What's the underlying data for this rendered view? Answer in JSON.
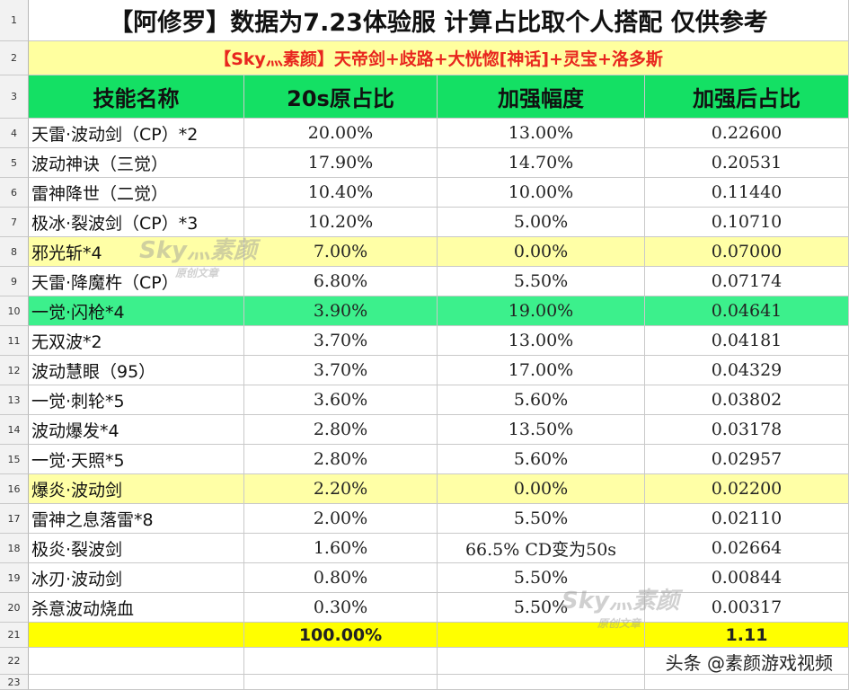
{
  "title": "【阿修罗】数据为7.23体验服 计算占比取个人搭配 仅供参考",
  "subtitle": "【Sky灬素颜】天帝剑+歧路+大恍惚[神话]+灵宝+洛多斯",
  "headers": [
    "技能名称",
    "20s原占比",
    "加强幅度",
    "加强后占比"
  ],
  "row_numbers": [
    "1",
    "2",
    "3",
    "4",
    "5",
    "6",
    "7",
    "8",
    "9",
    "10",
    "11",
    "12",
    "13",
    "14",
    "15",
    "16",
    "17",
    "18",
    "19",
    "20",
    "21",
    "22",
    "23"
  ],
  "rows": [
    {
      "name": "天雷·波动剑（CP）*2",
      "orig": "20.00%",
      "boost": "13.00%",
      "after": "0.22600",
      "hl": ""
    },
    {
      "name": "波动神诀（三觉）",
      "orig": "17.90%",
      "boost": "14.70%",
      "after": "0.20531",
      "hl": ""
    },
    {
      "name": "雷神降世（二觉）",
      "orig": "10.40%",
      "boost": "10.00%",
      "after": "0.11440",
      "hl": ""
    },
    {
      "name": "极冰·裂波剑（CP）*3",
      "orig": "10.20%",
      "boost": "5.00%",
      "after": "0.10710",
      "hl": ""
    },
    {
      "name": "邪光斩*4",
      "orig": "7.00%",
      "boost": "0.00%",
      "after": "0.07000",
      "hl": "yellow"
    },
    {
      "name": "天雷·降魔杵（CP）",
      "orig": "6.80%",
      "boost": "5.50%",
      "after": "0.07174",
      "hl": ""
    },
    {
      "name": "一觉·闪枪*4",
      "orig": "3.90%",
      "boost": "19.00%",
      "after": "0.04641",
      "hl": "green"
    },
    {
      "name": "无双波*2",
      "orig": "3.70%",
      "boost": "13.00%",
      "after": "0.04181",
      "hl": ""
    },
    {
      "name": "波动慧眼（95）",
      "orig": "3.70%",
      "boost": "17.00%",
      "after": "0.04329",
      "hl": ""
    },
    {
      "name": "一觉·刺轮*5",
      "orig": "3.60%",
      "boost": "5.60%",
      "after": "0.03802",
      "hl": ""
    },
    {
      "name": "波动爆发*4",
      "orig": "2.80%",
      "boost": "13.50%",
      "after": "0.03178",
      "hl": ""
    },
    {
      "name": "一觉·天照*5",
      "orig": "2.80%",
      "boost": "5.60%",
      "after": "0.02957",
      "hl": ""
    },
    {
      "name": "爆炎·波动剑",
      "orig": "2.20%",
      "boost": "0.00%",
      "after": "0.02200",
      "hl": "yellow"
    },
    {
      "name": "雷神之息落雷*8",
      "orig": "2.00%",
      "boost": "5.50%",
      "after": "0.02110",
      "hl": ""
    },
    {
      "name": "极炎·裂波剑",
      "orig": "1.60%",
      "boost": "66.5% CD变为50s",
      "after": "0.02664",
      "hl": ""
    },
    {
      "name": "冰刃·波动剑",
      "orig": "0.80%",
      "boost": "5.50%",
      "after": "0.00844",
      "hl": ""
    },
    {
      "name": "杀意波动烧血",
      "orig": "0.30%",
      "boost": "5.50%",
      "after": "0.00317",
      "hl": ""
    }
  ],
  "total": {
    "orig": "100.00%",
    "after": "1.11"
  },
  "watermark": {
    "brand": "Sky灬素颜",
    "sub": "原创文章"
  },
  "credit": "头条 @素颜游戏视频"
}
